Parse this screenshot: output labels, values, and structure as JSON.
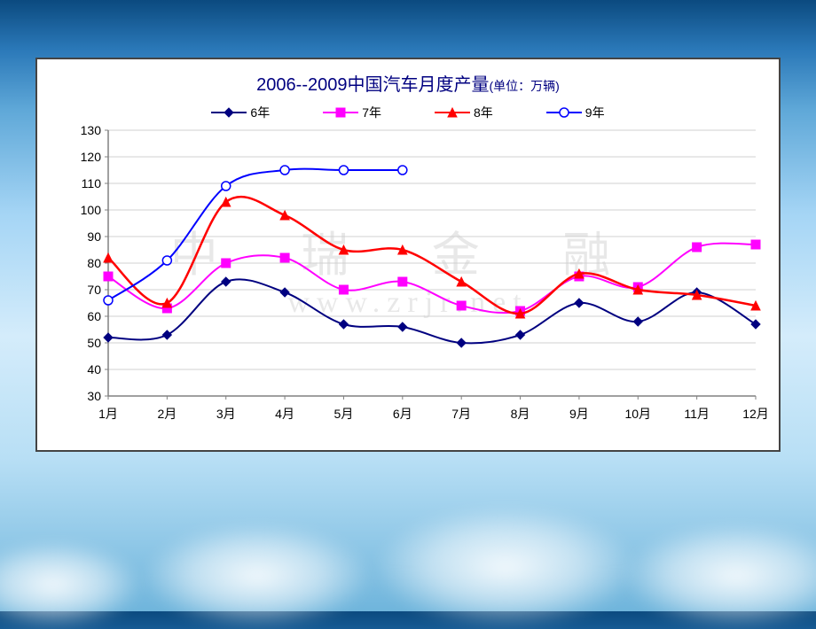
{
  "chart": {
    "type": "line",
    "title_main": "2006--2009中国汽车月度产量",
    "title_unit": "(单位：万辆)",
    "title_color": "#000080",
    "title_fontsize": 20,
    "unit_fontsize": 14,
    "background_color": "#ffffff",
    "border_color": "#444444",
    "watermark_main": "中 瑞 金 融",
    "watermark_sub": "www.zrjr.net",
    "watermark_color": "rgba(150,150,150,0.22)",
    "xlabels": [
      "1月",
      "2月",
      "3月",
      "4月",
      "5月",
      "6月",
      "7月",
      "8月",
      "9月",
      "10月",
      "11月",
      "12月"
    ],
    "ylim": [
      30,
      130
    ],
    "ytick_step": 10,
    "yticks": [
      30,
      40,
      50,
      60,
      70,
      80,
      90,
      100,
      110,
      120,
      130
    ],
    "grid_color": "#d0d0d0",
    "axis_color": "#808080",
    "label_fontsize": 14,
    "series": [
      {
        "name": "6年",
        "color": "#000080",
        "marker": "diamond",
        "marker_fill": "#000080",
        "line_width": 2,
        "values": [
          52,
          53,
          73,
          69,
          57,
          56,
          50,
          53,
          65,
          58,
          69,
          57
        ]
      },
      {
        "name": "7年",
        "color": "#ff00ff",
        "marker": "square",
        "marker_fill": "#ff00ff",
        "line_width": 2,
        "values": [
          75,
          63,
          80,
          82,
          70,
          73,
          64,
          62,
          75,
          71,
          86,
          87
        ]
      },
      {
        "name": "8年",
        "color": "#ff0000",
        "marker": "triangle",
        "marker_fill": "#ff0000",
        "line_width": 2.5,
        "values": [
          82,
          65,
          103,
          98,
          85,
          85,
          73,
          61,
          76,
          70,
          68,
          64
        ]
      },
      {
        "name": "9年",
        "color": "#0000ff",
        "marker": "circle",
        "marker_fill": "#ffffff",
        "line_width": 2,
        "values": [
          66,
          81,
          109,
          115,
          115,
          115
        ]
      }
    ]
  }
}
